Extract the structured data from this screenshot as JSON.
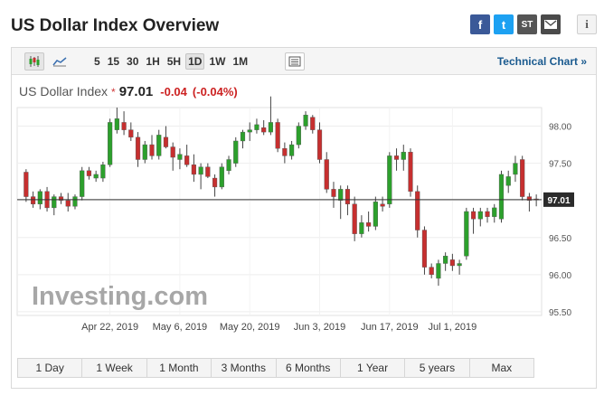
{
  "header": {
    "title": "US Dollar Index Overview",
    "share": {
      "facebook": "f",
      "twitter": "t",
      "stocktwits": "ST",
      "info": "i"
    }
  },
  "toolbar": {
    "periods": [
      "5",
      "15",
      "30",
      "1H",
      "5H",
      "1D",
      "1W",
      "1M"
    ],
    "active_period": "1D",
    "technical_chart": "Technical Chart »"
  },
  "quote": {
    "name": "US Dollar Index",
    "star": "*",
    "last": "97.01",
    "change": "-0.04",
    "change_pct": "(-0.04%)"
  },
  "watermark": "Investing.com",
  "ranges": [
    "1 Day",
    "1 Week",
    "1 Month",
    "3 Months",
    "6 Months",
    "1 Year",
    "5 years",
    "Max"
  ],
  "colors": {
    "up": "#2ca02c",
    "down": "#c62f2f",
    "accent": "#1a5a8f"
  },
  "chart_data": {
    "type": "candlestick",
    "yticks": [
      "98.00",
      "97.50",
      "97.00",
      "96.50",
      "96.00",
      "95.50"
    ],
    "ylim": [
      95.45,
      98.25
    ],
    "xlabels": [
      "Apr 22, 2019",
      "May 6, 2019",
      "May 20, 2019",
      "Jun 3, 2019",
      "Jun 17, 2019",
      "Jul 1, 2019"
    ],
    "xlabel_index": [
      12,
      22,
      32,
      42,
      52,
      61
    ],
    "last_price": 97.01,
    "last_label": "97.01",
    "candles": [
      [
        97.38,
        97.42,
        96.98,
        97.05
      ],
      [
        97.05,
        97.12,
        96.9,
        96.95
      ],
      [
        96.95,
        97.15,
        96.88,
        97.12
      ],
      [
        97.12,
        97.18,
        96.85,
        96.9
      ],
      [
        96.9,
        97.08,
        96.8,
        97.05
      ],
      [
        97.05,
        97.1,
        96.95,
        97.0
      ],
      [
        97.0,
        97.1,
        96.85,
        96.92
      ],
      [
        96.92,
        97.08,
        96.88,
        97.05
      ],
      [
        97.05,
        97.45,
        97.0,
        97.4
      ],
      [
        97.4,
        97.45,
        97.28,
        97.33
      ],
      [
        97.3,
        97.4,
        97.25,
        97.35
      ],
      [
        97.3,
        97.52,
        97.25,
        97.48
      ],
      [
        97.48,
        98.1,
        97.45,
        98.05
      ],
      [
        97.95,
        98.25,
        97.9,
        98.1
      ],
      [
        98.05,
        98.2,
        97.88,
        97.95
      ],
      [
        97.95,
        98.05,
        97.8,
        97.85
      ],
      [
        97.85,
        97.92,
        97.45,
        97.55
      ],
      [
        97.55,
        97.8,
        97.5,
        97.75
      ],
      [
        97.75,
        97.88,
        97.55,
        97.6
      ],
      [
        97.6,
        97.95,
        97.55,
        97.88
      ],
      [
        97.85,
        98.0,
        97.7,
        97.72
      ],
      [
        97.72,
        97.78,
        97.4,
        97.58
      ],
      [
        97.55,
        97.7,
        97.42,
        97.62
      ],
      [
        97.6,
        97.75,
        97.45,
        97.48
      ],
      [
        97.48,
        97.62,
        97.25,
        97.35
      ],
      [
        97.35,
        97.5,
        97.15,
        97.45
      ],
      [
        97.45,
        97.5,
        97.3,
        97.32
      ],
      [
        97.3,
        97.35,
        97.05,
        97.18
      ],
      [
        97.18,
        97.5,
        97.15,
        97.45
      ],
      [
        97.4,
        97.6,
        97.35,
        97.55
      ],
      [
        97.5,
        97.85,
        97.45,
        97.8
      ],
      [
        97.8,
        97.95,
        97.7,
        97.92
      ],
      [
        97.92,
        98.05,
        97.8,
        97.95
      ],
      [
        97.95,
        98.1,
        97.9,
        98.02
      ],
      [
        97.98,
        98.08,
        97.88,
        97.92
      ],
      [
        97.92,
        98.4,
        97.88,
        98.05
      ],
      [
        98.05,
        98.1,
        97.65,
        97.7
      ],
      [
        97.7,
        97.78,
        97.5,
        97.6
      ],
      [
        97.6,
        97.8,
        97.55,
        97.75
      ],
      [
        97.75,
        98.05,
        97.7,
        98.0
      ],
      [
        98.0,
        98.2,
        97.95,
        98.15
      ],
      [
        98.12,
        98.15,
        97.9,
        97.95
      ],
      [
        97.95,
        98.05,
        97.5,
        97.55
      ],
      [
        97.55,
        97.65,
        97.1,
        97.15
      ],
      [
        97.15,
        97.25,
        96.9,
        97.05
      ],
      [
        97.0,
        97.2,
        96.75,
        97.15
      ],
      [
        97.15,
        97.2,
        96.8,
        96.95
      ],
      [
        96.95,
        97.05,
        96.45,
        96.55
      ],
      [
        96.55,
        96.8,
        96.5,
        96.7
      ],
      [
        96.7,
        96.85,
        96.58,
        96.65
      ],
      [
        96.65,
        97.05,
        96.6,
        96.98
      ],
      [
        96.95,
        97.05,
        96.85,
        96.92
      ],
      [
        96.95,
        97.65,
        96.9,
        97.6
      ],
      [
        97.6,
        97.7,
        97.4,
        97.55
      ],
      [
        97.55,
        97.75,
        97.4,
        97.65
      ],
      [
        97.65,
        97.7,
        97.05,
        97.12
      ],
      [
        97.12,
        97.2,
        96.5,
        96.6
      ],
      [
        96.6,
        96.65,
        96.0,
        96.1
      ],
      [
        96.1,
        96.15,
        95.95,
        96.0
      ],
      [
        95.95,
        96.2,
        95.85,
        96.15
      ],
      [
        96.15,
        96.3,
        96.05,
        96.25
      ],
      [
        96.2,
        96.28,
        96.05,
        96.12
      ],
      [
        96.12,
        96.2,
        96.0,
        96.15
      ],
      [
        96.25,
        96.9,
        96.2,
        96.85
      ],
      [
        96.85,
        96.9,
        96.55,
        96.75
      ],
      [
        96.75,
        96.9,
        96.65,
        96.85
      ],
      [
        96.85,
        96.9,
        96.7,
        96.78
      ],
      [
        96.78,
        96.95,
        96.7,
        96.9
      ],
      [
        96.75,
        97.4,
        96.7,
        97.35
      ],
      [
        97.2,
        97.4,
        97.1,
        97.32
      ],
      [
        97.35,
        97.6,
        97.25,
        97.5
      ],
      [
        97.55,
        97.6,
        97.0,
        97.05
      ],
      [
        97.05,
        97.1,
        96.85,
        97.0
      ],
      [
        97.02,
        97.08,
        96.92,
        97.01
      ]
    ]
  }
}
